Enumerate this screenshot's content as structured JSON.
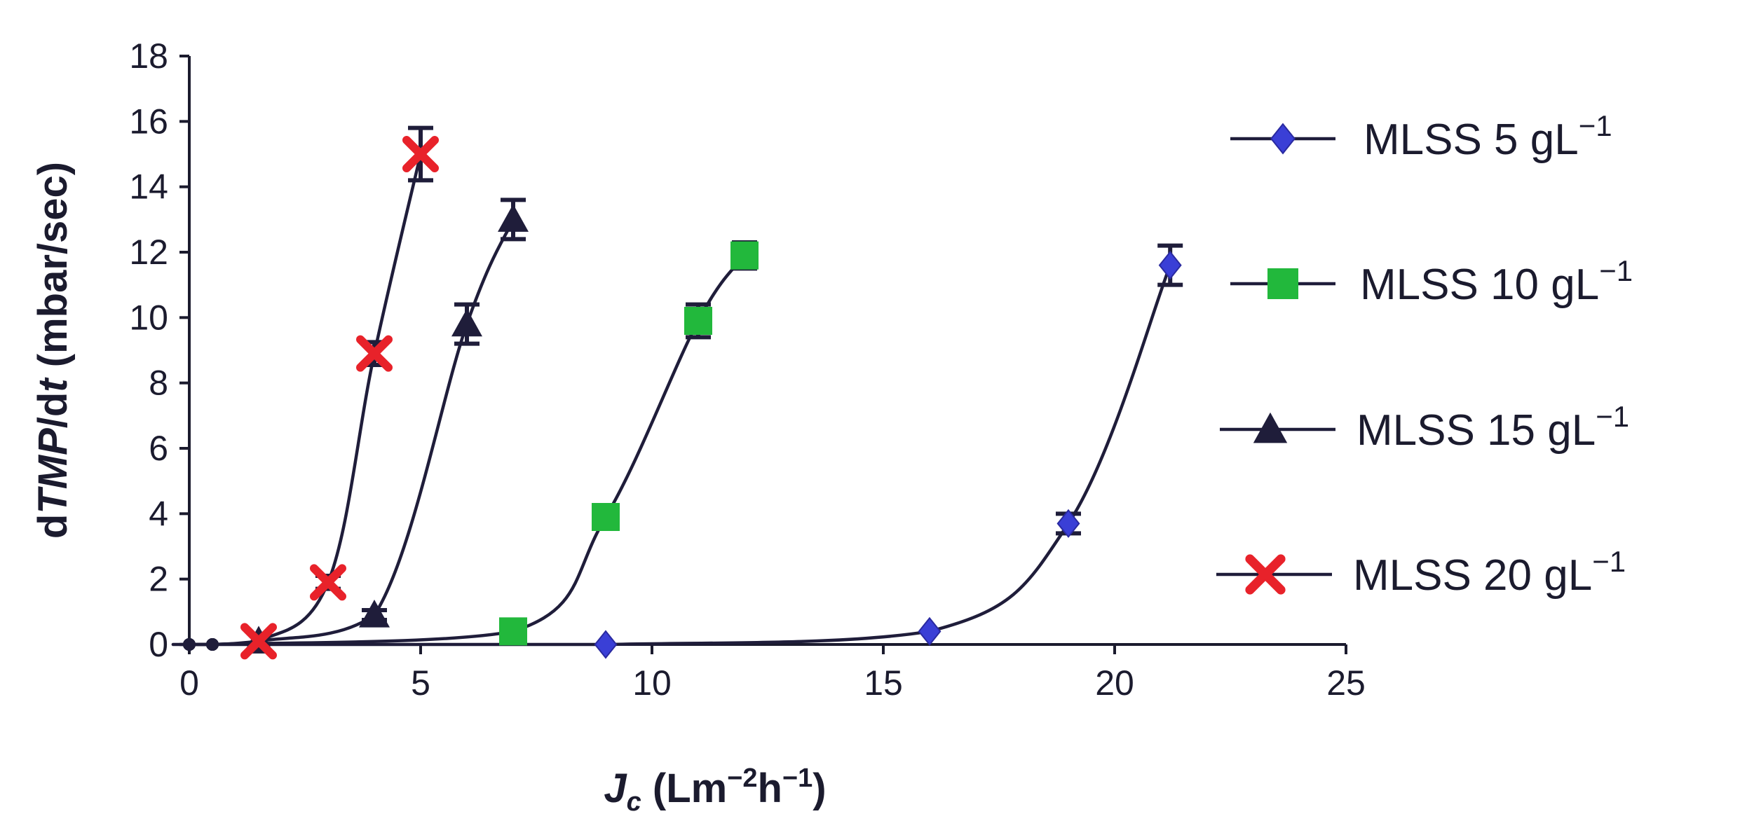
{
  "chart_data": {
    "type": "line",
    "xlabel": {
      "main": "J",
      "sub": "c",
      "rest": " (Lm",
      "sup1": "−2",
      "mid": "h",
      "sup2": "−1",
      "end": ")"
    },
    "ylabel": {
      "pre": "d",
      "italic": "TMP",
      "mid": "/d",
      "italic2": "t",
      "post": " (mbar/sec)"
    },
    "xlim": [
      0,
      25
    ],
    "ylim": [
      0,
      18
    ],
    "xticks": [
      0,
      5,
      10,
      15,
      20,
      25
    ],
    "yticks": [
      0,
      2,
      4,
      6,
      8,
      10,
      12,
      14,
      16,
      18
    ],
    "grid": false,
    "legend_position": "right",
    "series": [
      {
        "name": "MLSS 5 gL⁻¹",
        "label_main": "MLSS 5 gL",
        "label_sup": "−1",
        "marker": "diamond",
        "color": "#3a3fd6",
        "x": [
          0,
          0.5,
          9,
          16,
          19,
          21.2
        ],
        "y": [
          0,
          0,
          0,
          0.4,
          3.7,
          11.6
        ],
        "error": [
          0,
          0,
          0,
          0,
          0.3,
          0.6
        ]
      },
      {
        "name": "MLSS 10 gL⁻¹",
        "label_main": "MLSS 10 gL",
        "label_sup": "−1",
        "marker": "square",
        "color": "#22b83c",
        "x": [
          0,
          0.5,
          7,
          9,
          11,
          12
        ],
        "y": [
          0,
          0,
          0.4,
          3.9,
          9.9,
          11.9
        ],
        "error": [
          0,
          0,
          0,
          0.2,
          0.5,
          0.4
        ]
      },
      {
        "name": "MLSS 15 gL⁻¹",
        "label_main": "MLSS 15 gL",
        "label_sup": "−1",
        "marker": "triangle",
        "color": "#1f1d3a",
        "x": [
          0,
          0.5,
          1.5,
          4,
          6,
          7
        ],
        "y": [
          0,
          0,
          0.1,
          0.9,
          9.8,
          13
        ],
        "error": [
          0,
          0,
          0,
          0.15,
          0.6,
          0.6
        ]
      },
      {
        "name": "MLSS 20 gL⁻¹",
        "label_main": "MLSS 20 gL",
        "label_sup": "−1",
        "marker": "x",
        "color": "#e8222a",
        "x": [
          0,
          0.5,
          1.5,
          3,
          4,
          5
        ],
        "y": [
          0,
          0,
          0.1,
          1.9,
          8.9,
          15
        ],
        "error": [
          0,
          0,
          0,
          0.2,
          0.35,
          0.8
        ]
      }
    ]
  }
}
